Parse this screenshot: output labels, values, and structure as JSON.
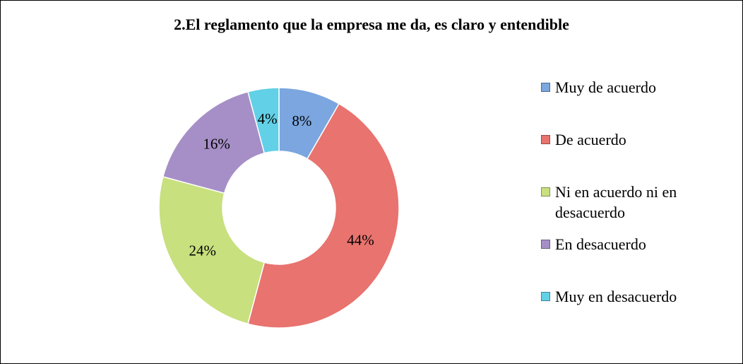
{
  "chart_data": {
    "type": "donut",
    "title": "2.El reglamento que la empresa me da, es claro y entendible",
    "categories": [
      "Muy de acuerdo",
      "De acuerdo",
      "Ni en acuerdo ni en desacuerdo",
      "En desacuerdo",
      "Muy en desacuerdo"
    ],
    "values": [
      8,
      44,
      24,
      16,
      4
    ],
    "value_labels": [
      "8%",
      "44%",
      "24%",
      "16%",
      "4%"
    ],
    "colors": [
      "#7ba6df",
      "#e8736f",
      "#c8e07e",
      "#a68fc6",
      "#62d0e6"
    ],
    "legend": "right"
  }
}
